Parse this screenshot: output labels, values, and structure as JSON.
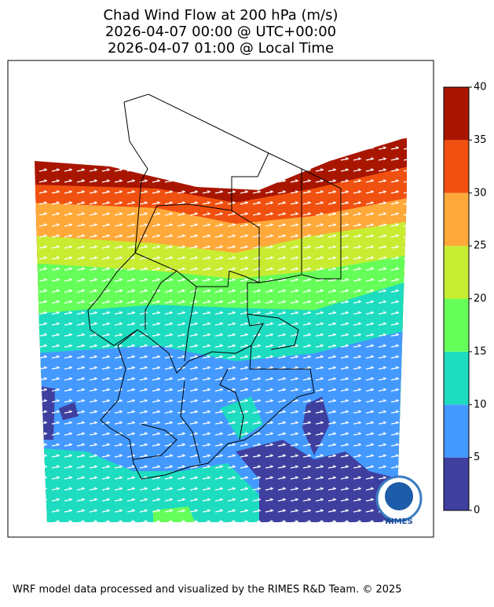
{
  "title": [
    "Chad Wind Flow at 200 hPa (m/s)",
    "2026-04-07 00:00 @ UTC+00:00",
    "2026-04-07 01:00 @ Local Time"
  ],
  "colorbar": {
    "ticks": [
      0,
      5,
      10,
      15,
      20,
      25,
      30,
      35,
      40
    ],
    "colors": [
      "#3f3f9f",
      "#4499ff",
      "#1edcc0",
      "#66ff5a",
      "#c8ec32",
      "#ffa93a",
      "#f05010",
      "#a81600"
    ]
  },
  "logo_text": "RIMES",
  "footer": "WRF model data processed and visualized by the RIMES R&D Team. © 2025"
}
